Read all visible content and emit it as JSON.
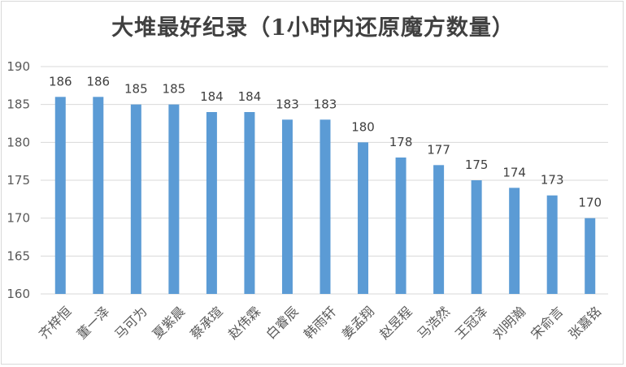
{
  "chart_data": {
    "type": "bar",
    "title": "大堆最好纪录（1小时内还原魔方数量）",
    "xlabel": "",
    "ylabel": "",
    "categories": [
      "齐梓恒",
      "董一泽",
      "马可为",
      "夏紫晨",
      "蔡承瑄",
      "赵伟霖",
      "白睿辰",
      "韩雨轩",
      "姜孟翔",
      "赵昱程",
      "马浩然",
      "王冠泽",
      "刘明瀚",
      "宋俞言",
      "张嘉铭"
    ],
    "values": [
      186,
      186,
      185,
      185,
      184,
      184,
      183,
      183,
      180,
      178,
      177,
      175,
      174,
      173,
      170
    ],
    "ylim": [
      160,
      190
    ],
    "yticks": [
      160,
      165,
      170,
      175,
      180,
      185,
      190
    ],
    "grid": true,
    "legend": "none",
    "bar_color": "#5b9bd5",
    "grid_color": "#d9d9d9"
  }
}
